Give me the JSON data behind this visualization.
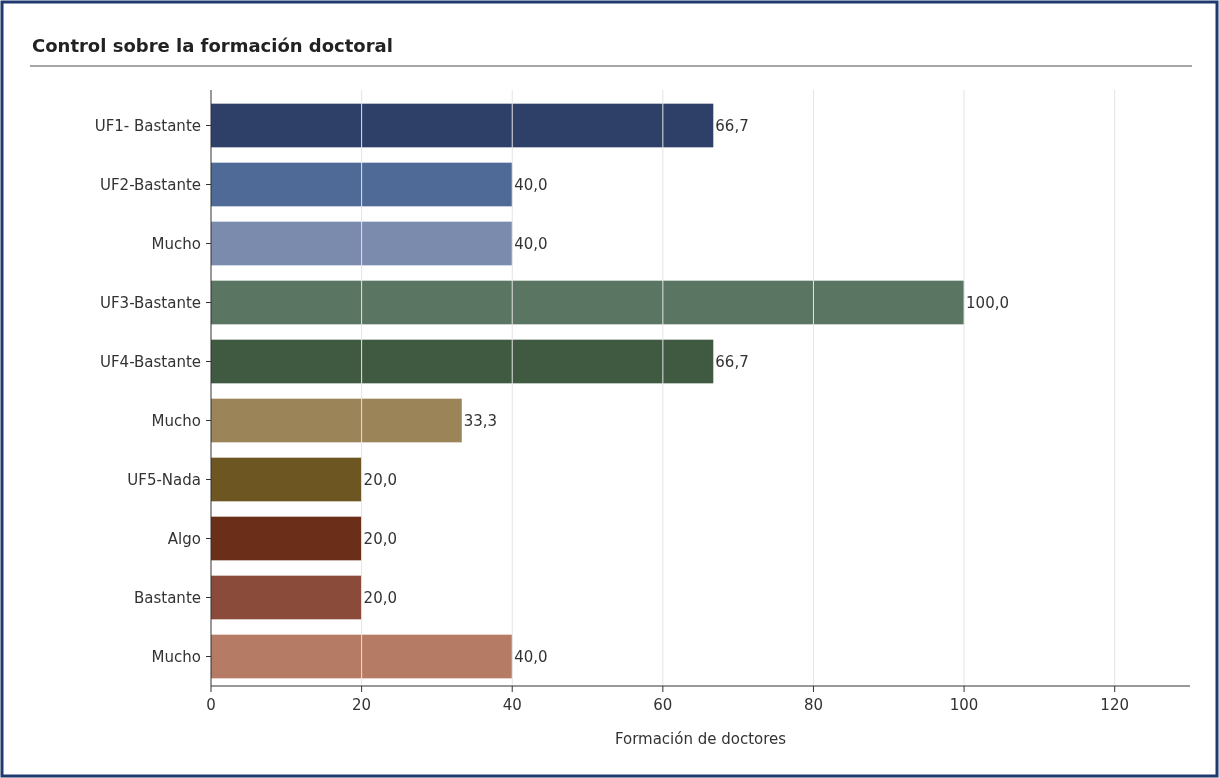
{
  "chart_data": {
    "type": "bar",
    "orientation": "horizontal",
    "title": "Control sobre la formación doctoral",
    "xlabel": "Formación de doctores",
    "categories": [
      "UF1- Bastante",
      "UF2-Bastante",
      "Mucho",
      "UF3-Bastante",
      "UF4-Bastante",
      "Mucho",
      "UF5-Nada",
      "Algo",
      "Bastante",
      "Mucho"
    ],
    "values": [
      66.7,
      40.0,
      40.0,
      100.0,
      66.7,
      33.3,
      20.0,
      20.0,
      20.0,
      40.0
    ],
    "value_labels": [
      "66,7",
      "40,0",
      "40,0",
      "100,0",
      "66,7",
      "33,3",
      "20,0",
      "20,0",
      "20,0",
      "40,0"
    ],
    "colors": [
      "#2f4068",
      "#4f6a96",
      "#7b8bad",
      "#5b7563",
      "#3f5a40",
      "#9a8458",
      "#6e5623",
      "#6a2e19",
      "#8a4b3a",
      "#b57b64"
    ],
    "xlim": [
      0,
      130
    ],
    "xticks": [
      0,
      20,
      40,
      60,
      80,
      100,
      120
    ],
    "grid": "x"
  }
}
